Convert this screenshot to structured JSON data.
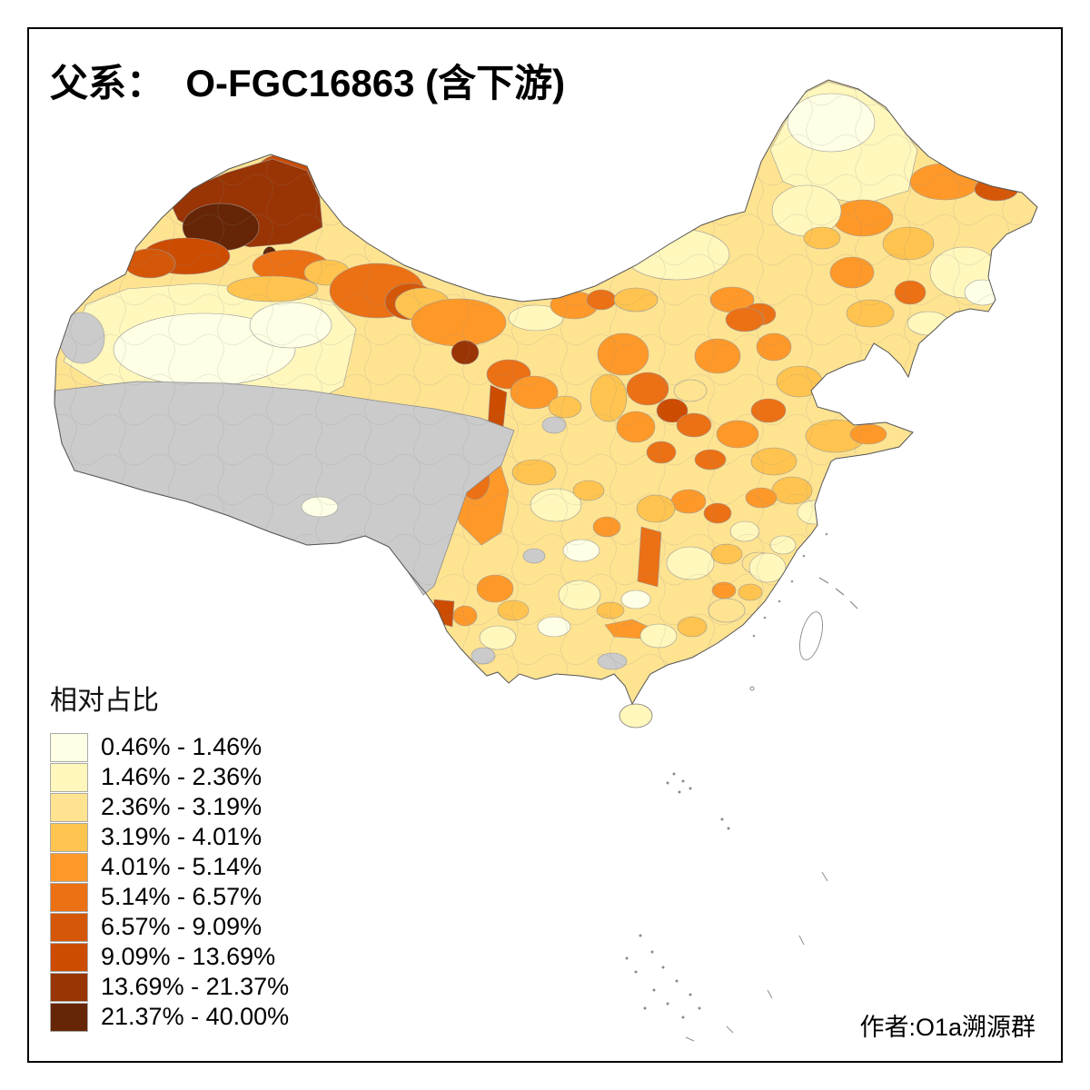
{
  "title": "父系：  O-FGC16863 (含下游)",
  "legend": {
    "title": "相对占比",
    "items": [
      {
        "label": "0.46% - 1.46%",
        "color": "#FFFFE5"
      },
      {
        "label": "1.46% - 2.36%",
        "color": "#FFF7BC"
      },
      {
        "label": "2.36% - 3.19%",
        "color": "#FEE391"
      },
      {
        "label": "3.19% - 4.01%",
        "color": "#FEC44F"
      },
      {
        "label": "4.01% - 5.14%",
        "color": "#FE9929"
      },
      {
        "label": "5.14% - 6.57%",
        "color": "#EC7014"
      },
      {
        "label": "6.57% - 9.09%",
        "color": "#D45708"
      },
      {
        "label": "9.09% - 13.69%",
        "color": "#CC4C02"
      },
      {
        "label": "13.69% - 21.37%",
        "color": "#993404"
      },
      {
        "label": "21.37% - 40.00%",
        "color": "#662506"
      }
    ],
    "no_data_color": "#CBCBCB"
  },
  "attribution": "作者:O1a溯源群"
}
